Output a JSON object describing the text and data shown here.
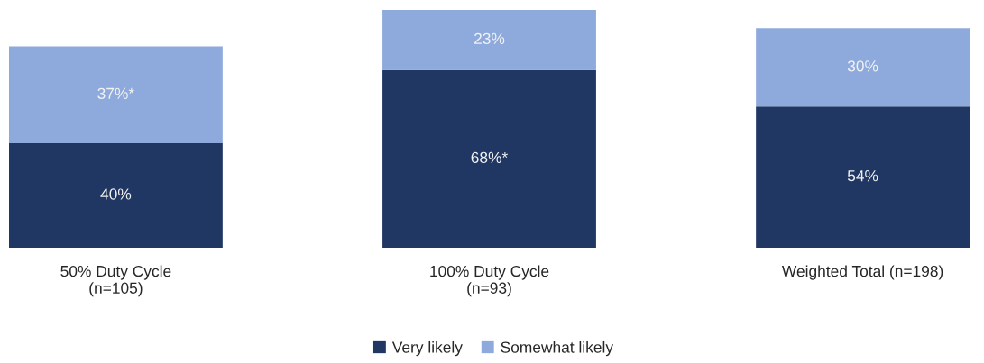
{
  "chart_data": {
    "type": "bar",
    "stacked": true,
    "categories": [
      "50% Duty Cycle\n(n=105)",
      "100% Duty Cycle\n(n=93)",
      "Weighted Total (n=198)"
    ],
    "series": [
      {
        "name": "Very likely",
        "color": "#213763",
        "values": [
          40,
          68,
          54
        ],
        "value_labels": [
          "40%",
          "68%*",
          "54%"
        ]
      },
      {
        "name": "Somewhat likely",
        "color": "#8eaadc",
        "values": [
          37,
          23,
          30
        ],
        "value_labels": [
          "37%*",
          "23%",
          "30%"
        ]
      }
    ],
    "legend": "bottom",
    "tick_labels": "x"
  }
}
